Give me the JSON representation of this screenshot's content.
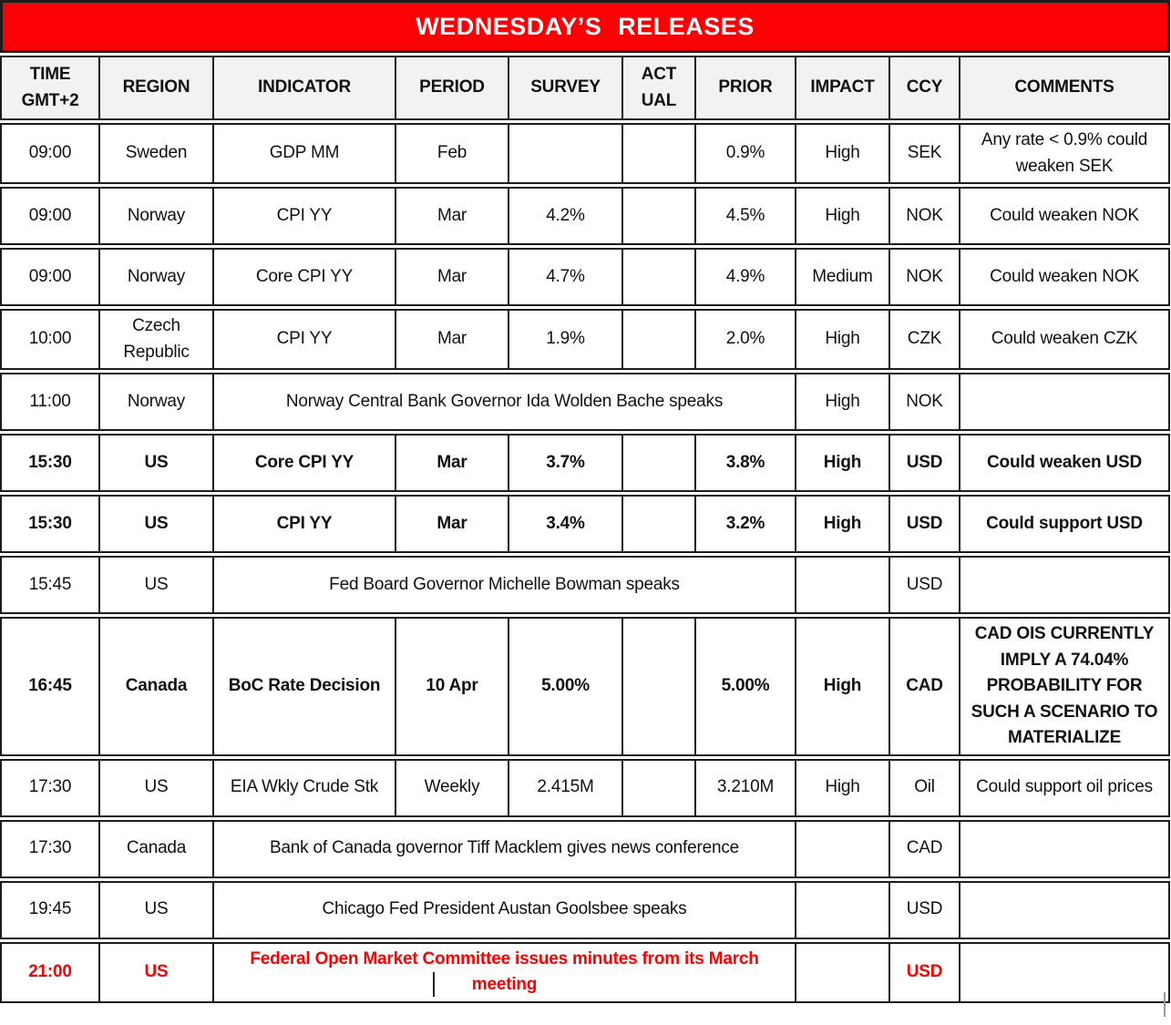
{
  "title": "WEDNESDAY’S RELEASES",
  "colors": {
    "title_bg": "#fb0104",
    "title_text": "#ffffff",
    "header_bg": "#f2f2f2",
    "border": "#1c1c1c",
    "text": "#111111",
    "red_text": "#fe0000"
  },
  "columns": [
    {
      "key": "time",
      "label": "TIME\nGMT+2"
    },
    {
      "key": "region",
      "label": "REGION"
    },
    {
      "key": "indicator",
      "label": "INDICATOR"
    },
    {
      "key": "period",
      "label": "PERIOD"
    },
    {
      "key": "survey",
      "label": "SURVEY"
    },
    {
      "key": "actual",
      "label": "ACT\nUAL"
    },
    {
      "key": "prior",
      "label": "PRIOR"
    },
    {
      "key": "impact",
      "label": "IMPACT"
    },
    {
      "key": "ccy",
      "label": "CCY"
    },
    {
      "key": "comments",
      "label": "COMMENTS"
    }
  ],
  "rows": [
    {
      "style": "normal",
      "time": "09:00",
      "region": "Sweden",
      "indicator": "GDP MM",
      "period": "Feb",
      "survey": "",
      "actual": "",
      "prior": "0.9%",
      "impact": "High",
      "ccy": "SEK",
      "comments": "Any rate < 0.9% could weaken SEK"
    },
    {
      "style": "normal",
      "time": "09:00",
      "region": "Norway",
      "indicator": "CPI YY",
      "period": "Mar",
      "survey": "4.2%",
      "actual": "",
      "prior": "4.5%",
      "impact": "High",
      "ccy": "NOK",
      "comments": "Could weaken NOK"
    },
    {
      "style": "normal",
      "time": "09:00",
      "region": "Norway",
      "indicator": "Core CPI YY",
      "period": "Mar",
      "survey": "4.7%",
      "actual": "",
      "prior": "4.9%",
      "impact": "Medium",
      "ccy": "NOK",
      "comments": "Could weaken NOK"
    },
    {
      "style": "normal",
      "time": "10:00",
      "region": "Czech Republic",
      "indicator": "CPI YY",
      "period": "Mar",
      "survey": "1.9%",
      "actual": "",
      "prior": "2.0%",
      "impact": "High",
      "ccy": "CZK",
      "comments": "Could weaken CZK"
    },
    {
      "style": "normal",
      "merged": true,
      "time": "11:00",
      "region": "Norway",
      "event": "Norway Central Bank Governor Ida Wolden Bache speaks",
      "impact": "High",
      "ccy": "NOK",
      "comments": ""
    },
    {
      "style": "bold",
      "time": "15:30",
      "region": "US",
      "indicator": "Core CPI YY",
      "period": "Mar",
      "survey": "3.7%",
      "actual": "",
      "prior": "3.8%",
      "impact": "High",
      "ccy": "USD",
      "comments": "Could weaken USD"
    },
    {
      "style": "bold",
      "time": "15:30",
      "region": "US",
      "indicator": "CPI YY",
      "period": "Mar",
      "survey": "3.4%",
      "actual": "",
      "prior": "3.2%",
      "impact": "High",
      "ccy": "USD",
      "comments": "Could support USD"
    },
    {
      "style": "normal",
      "merged": true,
      "time": "15:45",
      "region": "US",
      "event": "Fed Board Governor Michelle Bowman speaks",
      "impact": "",
      "ccy": "USD",
      "comments": ""
    },
    {
      "style": "bold",
      "tall": true,
      "time": "16:45",
      "region": "Canada",
      "indicator": "BoC Rate Decision",
      "period": "10 Apr",
      "survey": "5.00%",
      "actual": "",
      "prior": "5.00%",
      "impact": "High",
      "ccy": "CAD",
      "comments": "CAD OIS CURRENTLY IMPLY A 74.04% PROBABILITY FOR SUCH A SCENARIO TO MATERIALIZE"
    },
    {
      "style": "normal",
      "time": "17:30",
      "region": "US",
      "indicator": "EIA Wkly Crude Stk",
      "period": "Weekly",
      "survey": "2.415M",
      "actual": "",
      "prior": "3.210M",
      "impact": "High",
      "ccy": "Oil",
      "comments": "Could support oil prices"
    },
    {
      "style": "normal",
      "merged": true,
      "time": "17:30",
      "region": "Canada",
      "event": "Bank of Canada governor Tiff Macklem gives news conference",
      "impact": "",
      "ccy": "CAD",
      "comments": ""
    },
    {
      "style": "normal",
      "merged": true,
      "time": "19:45",
      "region": "US",
      "event": "Chicago Fed President Austan Goolsbee speaks",
      "impact": "",
      "ccy": "USD",
      "comments": ""
    },
    {
      "style": "red",
      "merged": true,
      "caret": true,
      "time": "21:00",
      "region": "US",
      "event": "Federal Open Market Committee issues minutes from its March meeting",
      "impact": "",
      "ccy": "USD",
      "comments": ""
    }
  ]
}
